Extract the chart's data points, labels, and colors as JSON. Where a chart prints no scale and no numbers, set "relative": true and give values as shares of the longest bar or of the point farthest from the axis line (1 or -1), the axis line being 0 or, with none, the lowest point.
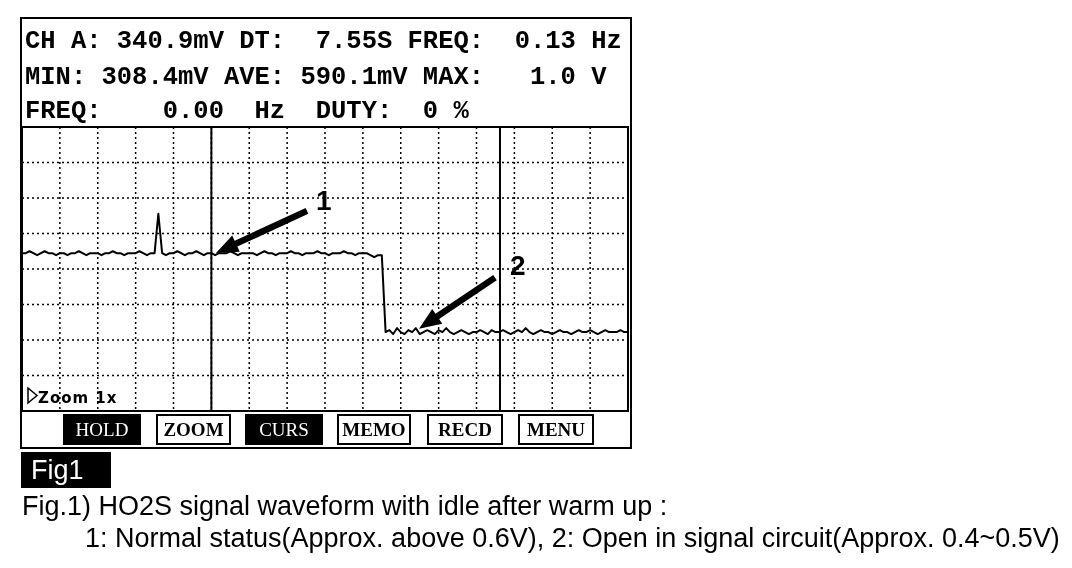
{
  "chart_data": {
    "type": "line",
    "categories": [
      null,
      null,
      null,
      null,
      null,
      null,
      null,
      null,
      null,
      null,
      null,
      null,
      null,
      null,
      null,
      null,
      null,
      null,
      null,
      null,
      null,
      null,
      null,
      null,
      null,
      null,
      null,
      null,
      null,
      null,
      null,
      null,
      null,
      null,
      null,
      null,
      null,
      null,
      null,
      null,
      null,
      null,
      null,
      null,
      null,
      null,
      null,
      null,
      null,
      null,
      null,
      null,
      null,
      null,
      null,
      null,
      null,
      null,
      null,
      null,
      null,
      null,
      null,
      null,
      null,
      null,
      null,
      null,
      null,
      null,
      null,
      null,
      null,
      null,
      null,
      null,
      null,
      null,
      null,
      null,
      null,
      null,
      null,
      null,
      null,
      null,
      null,
      null,
      null,
      null,
      null,
      null,
      null,
      null,
      null,
      null,
      null,
      null,
      null,
      null,
      null,
      null,
      null,
      null,
      null,
      null,
      null,
      null,
      null,
      null,
      null,
      null,
      null,
      null,
      null,
      null,
      null,
      null,
      null,
      null,
      null,
      null,
      null,
      null,
      null,
      null,
      null,
      null,
      null,
      null,
      null,
      null,
      null,
      null,
      null,
      null,
      null,
      null,
      null,
      null,
      null,
      null,
      null,
      null,
      null,
      null,
      null,
      null,
      null,
      null,
      null,
      null,
      null,
      null,
      null,
      null,
      null,
      null,
      null,
      null,
      null
    ],
    "values": [
      0.8,
      0.8,
      0.81,
      0.8,
      0.79,
      0.8,
      0.81,
      0.8,
      0.8,
      0.79,
      0.8,
      0.8,
      0.79,
      0.8,
      0.8,
      0.81,
      0.8,
      0.79,
      0.8,
      0.8,
      0.8,
      0.79,
      0.8,
      0.8,
      0.81,
      0.8,
      0.8,
      0.79,
      0.8,
      0.8,
      0.8,
      0.81,
      0.8,
      0.79,
      0.8,
      0.8,
      1.0,
      0.8,
      0.79,
      0.8,
      0.8,
      0.81,
      0.8,
      0.79,
      0.8,
      0.8,
      0.81,
      0.8,
      0.79,
      0.8,
      0.8,
      0.79,
      0.8,
      0.8,
      0.8,
      0.81,
      0.8,
      0.79,
      0.8,
      0.8,
      0.8,
      0.8,
      0.79,
      0.8,
      0.81,
      0.8,
      0.8,
      0.79,
      0.8,
      0.8,
      0.8,
      0.81,
      0.8,
      0.8,
      0.79,
      0.8,
      0.8,
      0.8,
      0.81,
      0.8,
      0.8,
      0.79,
      0.8,
      0.8,
      0.8,
      0.81,
      0.8,
      0.8,
      0.79,
      0.8,
      0.8,
      0.8,
      0.79,
      0.78,
      0.79,
      0.79,
      0.4,
      0.41,
      0.39,
      0.42,
      0.4,
      0.39,
      0.41,
      0.4,
      0.42,
      0.39,
      0.4,
      0.41,
      0.4,
      0.39,
      0.41,
      0.4,
      0.42,
      0.4,
      0.39,
      0.4,
      0.41,
      0.4,
      0.39,
      0.4,
      0.4,
      0.41,
      0.4,
      0.39,
      0.41,
      0.4,
      0.4,
      0.41,
      0.4,
      0.39,
      0.4,
      0.41,
      0.4,
      0.42,
      0.4,
      0.39,
      0.4,
      0.41,
      0.4,
      0.4,
      0.39,
      0.4,
      0.41,
      0.4,
      0.4,
      0.39,
      0.4,
      0.41,
      0.4,
      0.4,
      0.41,
      0.4,
      0.39,
      0.4,
      0.41,
      0.4,
      0.4,
      0.4,
      0.41,
      0.4,
      0.4
    ],
    "color": "#000000",
    "relative": true,
    "grid": true,
    "annotations": [
      "CH A: 340.9mV DT:  7.55S FREQ:  0.13 Hz",
      "MIN: 308.4mV AVE: 590.1mV MAX:   1.0 V",
      "FREQ:    0.00  Hz  DUTY:  0 %",
      "1",
      "2",
      "Zoom 1x",
      "HOLD",
      "ZOOM",
      "CURS",
      "MEMO",
      "RECD",
      "MENU",
      "Fig1",
      "Fig.1) HO2S signal waveform with idle after warm up :",
      "1: Normal status(Approx. above 0.6V), 2: Open in signal circuit(Approx. 0.4~0.5V)"
    ]
  }
}
